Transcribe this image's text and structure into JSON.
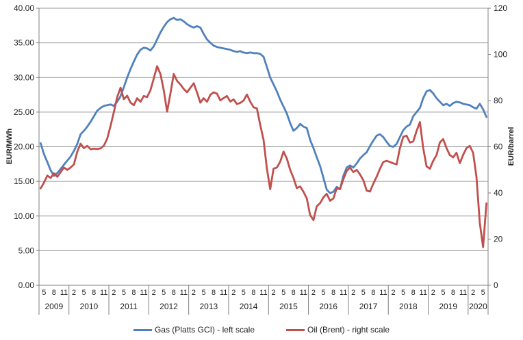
{
  "chart_data": {
    "type": "line",
    "title": "",
    "left_axis": {
      "label": "EUR/MWh",
      "min": 0,
      "max": 40,
      "step": 5,
      "tick_labels": [
        "40.00",
        "35.00",
        "30.00",
        "25.00",
        "20.00",
        "15.00",
        "10.00",
        "5.00",
        "0.00"
      ]
    },
    "right_axis": {
      "label": "EUR/barrel",
      "min": 0,
      "max": 120,
      "step": 20,
      "tick_labels": [
        "120",
        "100",
        "80",
        "60",
        "40",
        "20",
        "0"
      ]
    },
    "x_axis": {
      "frequency": "monthly",
      "start": "2009-04",
      "end": "2020-06",
      "years": [
        {
          "label": "2009",
          "first_month": 4,
          "month_count": 9,
          "tick_months": [
            5,
            8,
            11
          ]
        },
        {
          "label": "2010",
          "first_month": 1,
          "month_count": 12,
          "tick_months": [
            2,
            5,
            8,
            11
          ]
        },
        {
          "label": "2011",
          "first_month": 1,
          "month_count": 12,
          "tick_months": [
            2,
            5,
            8,
            11
          ]
        },
        {
          "label": "2012",
          "first_month": 1,
          "month_count": 12,
          "tick_months": [
            2,
            5,
            8,
            11
          ]
        },
        {
          "label": "2013",
          "first_month": 1,
          "month_count": 12,
          "tick_months": [
            2,
            5,
            8,
            11
          ]
        },
        {
          "label": "2014",
          "first_month": 1,
          "month_count": 12,
          "tick_months": [
            2,
            5,
            8,
            11
          ]
        },
        {
          "label": "2015",
          "first_month": 1,
          "month_count": 12,
          "tick_months": [
            2,
            5,
            8,
            11
          ]
        },
        {
          "label": "2016",
          "first_month": 1,
          "month_count": 12,
          "tick_months": [
            2,
            5,
            8,
            11
          ]
        },
        {
          "label": "2017",
          "first_month": 1,
          "month_count": 12,
          "tick_months": [
            2,
            5,
            8,
            11
          ]
        },
        {
          "label": "2018",
          "first_month": 1,
          "month_count": 12,
          "tick_months": [
            2,
            5,
            8,
            11
          ]
        },
        {
          "label": "2019",
          "first_month": 1,
          "month_count": 12,
          "tick_months": [
            2,
            5,
            8,
            11
          ]
        },
        {
          "label": "2020",
          "first_month": 1,
          "month_count": 6,
          "tick_months": [
            2,
            5
          ]
        }
      ]
    },
    "grid": "horizontal-only",
    "legend_position": "bottom",
    "series": [
      {
        "name": "Gas (Platts GCI) - left scale",
        "axis": "left",
        "color": "#4f81bd",
        "values": [
          20.5,
          18.9,
          17.8,
          16.6,
          15.8,
          16.2,
          16.8,
          17.4,
          18.0,
          18.6,
          19.4,
          20.4,
          21.8,
          22.3,
          22.9,
          23.6,
          24.4,
          25.2,
          25.6,
          25.9,
          26.0,
          26.1,
          25.9,
          26.5,
          27.3,
          28.6,
          30.0,
          31.2,
          32.3,
          33.3,
          34.0,
          34.3,
          34.2,
          33.9,
          34.5,
          35.5,
          36.5,
          37.3,
          38.0,
          38.4,
          38.6,
          38.3,
          38.4,
          38.1,
          37.7,
          37.4,
          37.2,
          37.4,
          37.2,
          36.3,
          35.5,
          35.0,
          34.6,
          34.4,
          34.3,
          34.2,
          34.1,
          34.0,
          33.8,
          33.7,
          33.8,
          33.6,
          33.5,
          33.6,
          33.5,
          33.5,
          33.4,
          33.0,
          31.5,
          30.0,
          29.0,
          28.0,
          26.8,
          25.8,
          24.8,
          23.4,
          22.3,
          22.7,
          23.3,
          22.9,
          22.7,
          21.0,
          19.8,
          18.5,
          17.2,
          15.5,
          13.8,
          13.3,
          13.5,
          14.2,
          13.9,
          15.8,
          17.0,
          17.3,
          17.0,
          17.6,
          18.3,
          18.8,
          19.2,
          20.1,
          20.9,
          21.6,
          21.8,
          21.4,
          20.7,
          20.1,
          20.0,
          20.4,
          21.4,
          22.4,
          22.9,
          23.2,
          24.4,
          25.0,
          25.6,
          27.0,
          28.0,
          28.2,
          27.7,
          27.0,
          26.5,
          26.0,
          26.2,
          25.9,
          26.3,
          26.5,
          26.4,
          26.2,
          26.1,
          26.0,
          25.7,
          25.5,
          26.2,
          25.4,
          24.3
        ]
      },
      {
        "name": "Oil (Brent) - right scale",
        "axis": "right",
        "color": "#c0504d",
        "values": [
          42.0,
          44.5,
          47.5,
          46.5,
          48.5,
          47.0,
          49.0,
          51.0,
          50.0,
          51.0,
          52.4,
          57.9,
          61.3,
          59.4,
          60.4,
          58.9,
          59.2,
          59.0,
          59.3,
          60.5,
          63.5,
          69.0,
          75.0,
          81.5,
          85.6,
          80.6,
          82.1,
          79.1,
          78.0,
          81.0,
          79.5,
          82.0,
          81.5,
          84.5,
          89.5,
          94.9,
          91.5,
          84.5,
          75.2,
          83.0,
          91.5,
          88.5,
          87.0,
          85.0,
          83.6,
          85.5,
          87.5,
          83.5,
          79.1,
          81.0,
          79.5,
          82.5,
          83.6,
          83.0,
          80.1,
          81.1,
          82.0,
          79.6,
          80.5,
          78.5,
          79.0,
          80.0,
          82.6,
          79.5,
          77.1,
          76.6,
          69.5,
          63.0,
          50.5,
          41.6,
          50.5,
          51.0,
          53.5,
          57.9,
          54.9,
          50.0,
          46.5,
          42.1,
          42.8,
          40.5,
          37.6,
          30.5,
          28.2,
          34.2,
          35.6,
          38.1,
          39.6,
          36.6,
          37.6,
          42.0,
          41.6,
          46.0,
          49.5,
          51.0,
          49.0,
          50.0,
          48.0,
          45.5,
          41.0,
          40.6,
          44.1,
          47.0,
          50.5,
          53.4,
          53.9,
          53.4,
          52.8,
          52.4,
          59.4,
          64.3,
          64.8,
          61.8,
          62.3,
          66.8,
          70.7,
          59.5,
          51.5,
          50.5,
          53.9,
          56.4,
          61.8,
          63.3,
          59.4,
          56.4,
          55.4,
          57.4,
          52.9,
          56.5,
          59.4,
          60.4,
          57.4,
          47.0,
          27.0,
          16.5,
          35.5
        ]
      }
    ]
  }
}
